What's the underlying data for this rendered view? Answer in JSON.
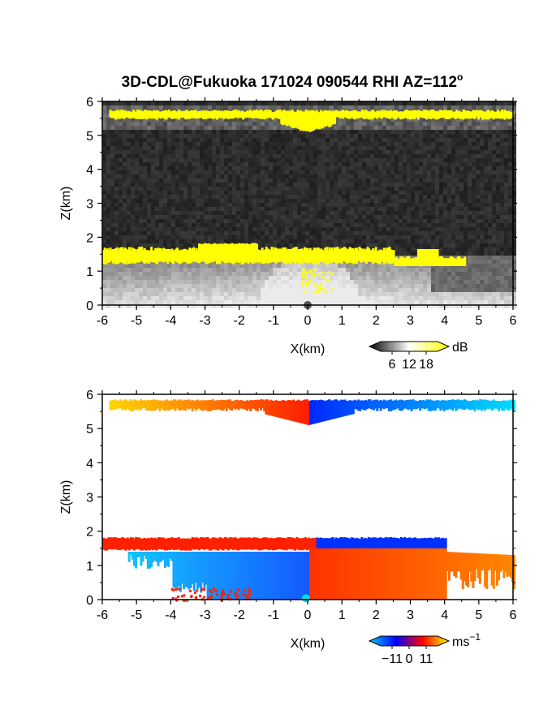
{
  "title": "3D-CDL@Fukuoka 171024 090544 RHI AZ=112",
  "title_superscript": "o",
  "chart_data": [
    {
      "type": "heatmap",
      "name": "reflectivity",
      "xlabel": "X(km)",
      "ylabel": "Z(km)",
      "xlim": [
        -6,
        6
      ],
      "ylim": [
        0,
        6
      ],
      "xticks": [
        "-6",
        "-5",
        "-4",
        "-3",
        "-2",
        "-1",
        "0",
        "1",
        "2",
        "3",
        "4",
        "5",
        "6"
      ],
      "yticks": [
        "0",
        "1",
        "2",
        "3",
        "4",
        "5",
        "6"
      ],
      "colorbar": {
        "ticks": [
          "6",
          "12",
          "18"
        ],
        "unit": "dB",
        "colors": [
          "#000000",
          "#ffffff",
          "#ffff00"
        ]
      },
      "features": [
        {
          "label": "upper cloud layer",
          "zmin": 5.5,
          "zmax": 5.8,
          "x": [
            -5.8,
            6
          ]
        },
        {
          "label": "lower cloud layer",
          "zmin": 1.3,
          "zmax": 1.8,
          "x": [
            -6,
            4.6
          ]
        }
      ]
    },
    {
      "type": "heatmap",
      "name": "velocity",
      "xlabel": "X(km)",
      "ylabel": "Z(km)",
      "xlim": [
        -6,
        6
      ],
      "ylim": [
        0,
        6
      ],
      "xticks": [
        "-6",
        "-5",
        "-4",
        "-3",
        "-2",
        "-1",
        "0",
        "1",
        "2",
        "3",
        "4",
        "5",
        "6"
      ],
      "yticks": [
        "0",
        "1",
        "2",
        "3",
        "4",
        "5",
        "6"
      ],
      "colorbar": {
        "ticks": [
          "−11",
          "0",
          "11"
        ],
        "unit": "ms",
        "unit_exponent": "−1",
        "colors": [
          "#00c8ff",
          "#0000ff",
          "#ff0000",
          "#ffff00"
        ]
      }
    }
  ]
}
